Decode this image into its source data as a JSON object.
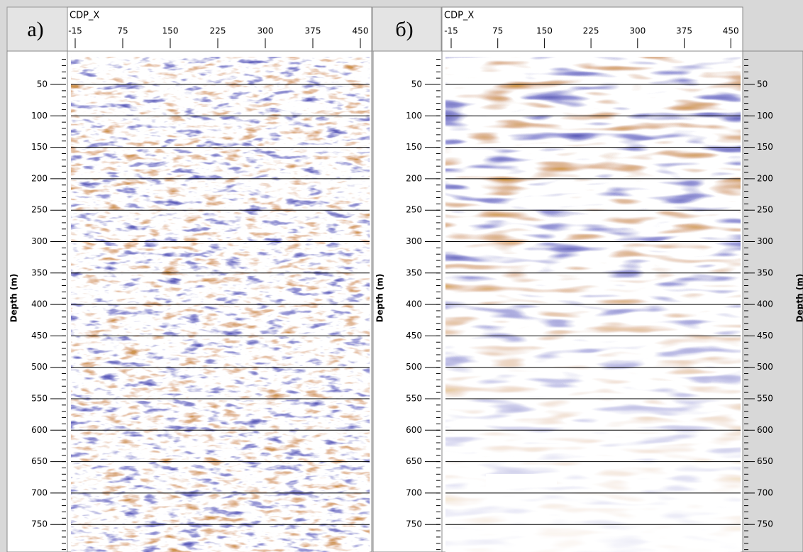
{
  "panels": [
    {
      "label": "а)",
      "x_axis": {
        "title": "CDP_X",
        "ticks": [
          "-15",
          "75",
          "150",
          "225",
          "300",
          "375",
          "450"
        ]
      },
      "y_axis": {
        "title": "Depth (m)",
        "ticks": [
          "50",
          "100",
          "150",
          "200",
          "250",
          "300",
          "350",
          "400",
          "450",
          "500",
          "550",
          "600",
          "650",
          "700",
          "750"
        ]
      }
    },
    {
      "label": "б)",
      "x_axis": {
        "title": "CDP_X",
        "ticks": [
          "-15",
          "75",
          "150",
          "225",
          "300",
          "375",
          "450"
        ]
      },
      "y_axis": {
        "title": "Depth (m)",
        "ticks": [
          "50",
          "100",
          "150",
          "200",
          "250",
          "300",
          "350",
          "400",
          "450",
          "500",
          "550",
          "600",
          "650",
          "700",
          "750"
        ]
      }
    }
  ]
}
